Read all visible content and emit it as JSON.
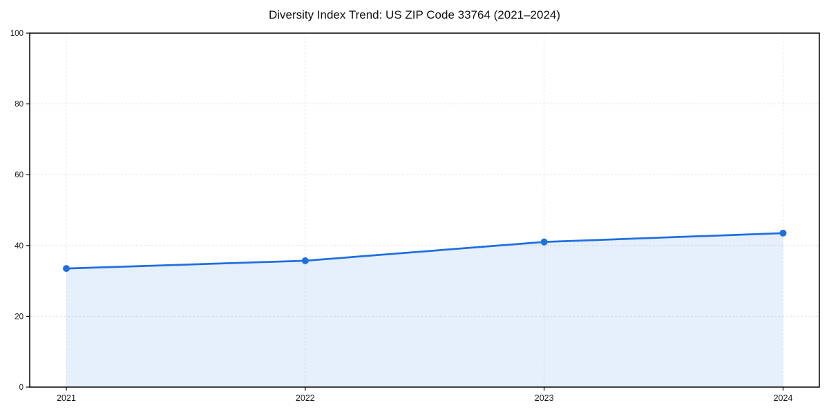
{
  "chart_data": {
    "type": "area",
    "title": "Diversity Index Trend: US ZIP Code 33764 (2021–2024)",
    "x": [
      "2021",
      "2022",
      "2023",
      "2024"
    ],
    "series": [
      {
        "name": "Diversity Index",
        "values": [
          33.5,
          35.7,
          41.0,
          43.5
        ]
      }
    ],
    "xlabel": "",
    "ylabel": "",
    "ylim": [
      0,
      100
    ],
    "yticks": [
      0,
      20,
      40,
      60,
      80,
      100
    ],
    "grid": true,
    "grid_style": "dashed",
    "legend": "none",
    "marker": "circle",
    "colors": {
      "line": "#1f6fe0",
      "marker": "#1f6fe0",
      "area_fill": "rgba(31,111,224,0.11)",
      "grid": "#e4e4e4",
      "axis": "#000000",
      "text": "#1a1a1a",
      "background": "#ffffff"
    }
  }
}
